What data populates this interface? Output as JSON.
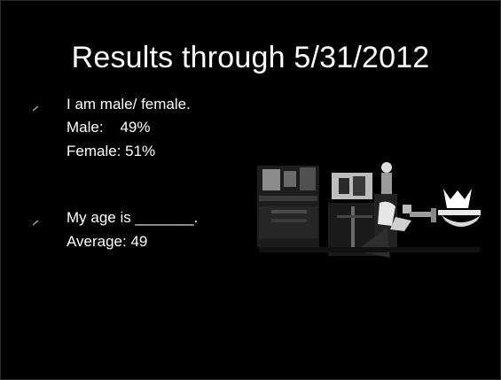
{
  "slide": {
    "title": "Results through 5/31/2012",
    "bullets": [
      {
        "icon": "bullet-arrow-icon",
        "lines": [
          "I am male/ female.",
          "Male:    49%",
          "Female: 51%"
        ]
      },
      {
        "icon": "bullet-arrow-icon",
        "lines": [
          "My age is _______.",
          "Average: 49"
        ]
      }
    ],
    "image": {
      "icon": "people-photo-icon"
    }
  },
  "colors": {
    "background": "#000000",
    "text": "#ffffff",
    "bullet": "#9a9a9a"
  }
}
